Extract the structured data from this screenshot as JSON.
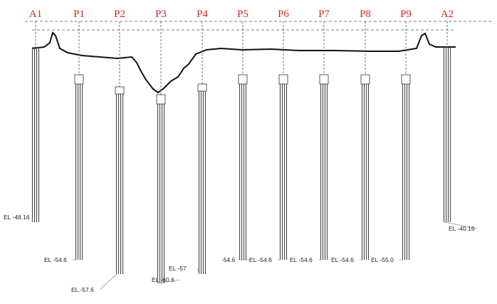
{
  "supports": [
    {
      "label": "A1",
      "elevation": "EL -48.16"
    },
    {
      "label": "P1",
      "elevation": "EL -54.6"
    },
    {
      "label": "P2",
      "elevation": "EL -57.6"
    },
    {
      "label": "P3",
      "elevation": "EL -60.6"
    },
    {
      "label": "P4",
      "elevation": "EL -57"
    },
    {
      "label": "P5",
      "elevation": "-54.6"
    },
    {
      "label": "P6",
      "elevation": "EL -54.6"
    },
    {
      "label": "P7",
      "elevation": "EL -54.6"
    },
    {
      "label": "P8",
      "elevation": "EL -54.6"
    },
    {
      "label": "P9",
      "elevation": "EL -55.0"
    },
    {
      "label": "A2",
      "elevation": "EL -40.16"
    }
  ]
}
